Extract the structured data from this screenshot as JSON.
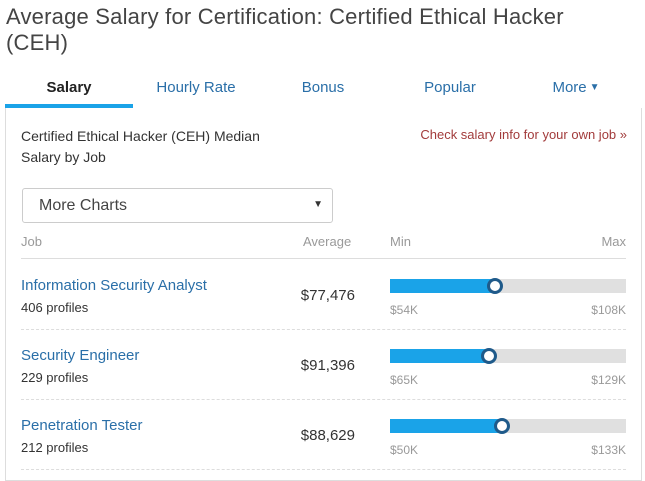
{
  "header": {
    "title": "Average Salary for Certification: Certified Ethical Hacker (CEH)"
  },
  "tabs": [
    {
      "label": "Salary",
      "active": true
    },
    {
      "label": "Hourly Rate",
      "active": false
    },
    {
      "label": "Bonus",
      "active": false
    },
    {
      "label": "Popular",
      "active": false
    },
    {
      "label": "More",
      "active": false
    }
  ],
  "card": {
    "title": "Certified Ethical Hacker (CEH) Median Salary by Job",
    "check_link": "Check salary info for your own job »",
    "select": {
      "value": "More Charts"
    },
    "columns": {
      "job": "Job",
      "average": "Average",
      "min": "Min",
      "max": "Max"
    }
  },
  "chart_data": {
    "type": "table",
    "title": "Certified Ethical Hacker (CEH) Median Salary by Job",
    "columns": [
      "Job",
      "Average",
      "Min",
      "Max"
    ],
    "rows": [
      {
        "job": "Information Security Analyst",
        "profiles": "406 profiles",
        "average": "$77,476",
        "average_value": 77476,
        "min": "$54K",
        "min_value": 54000,
        "max": "$108K",
        "max_value": 108000
      },
      {
        "job": "Security Engineer",
        "profiles": "229 profiles",
        "average": "$91,396",
        "average_value": 91396,
        "min": "$65K",
        "min_value": 65000,
        "max": "$129K",
        "max_value": 129000
      },
      {
        "job": "Penetration Tester",
        "profiles": "212 profiles",
        "average": "$88,629",
        "average_value": 88629,
        "min": "$50K",
        "min_value": 50000,
        "max": "$133K",
        "max_value": 133000
      }
    ]
  },
  "colors": {
    "accent": "#1aa3e8",
    "link": "#2a6fa8",
    "marker_border": "#1f5a8a",
    "check_link": "#a23b3b",
    "track": "#e0e0e0"
  }
}
